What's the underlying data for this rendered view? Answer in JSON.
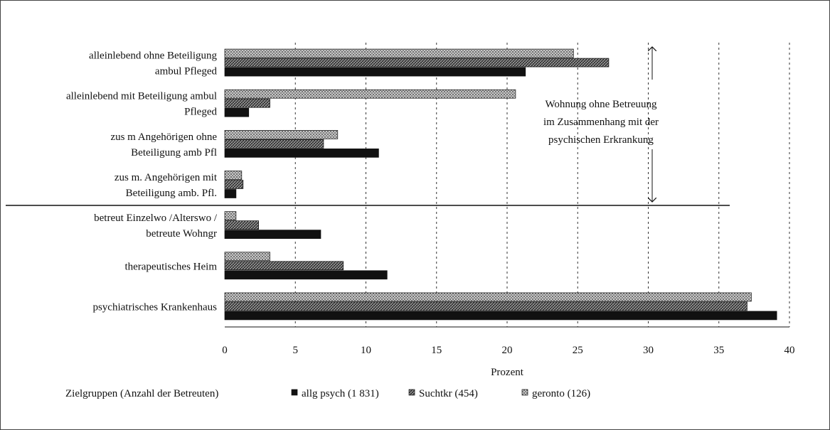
{
  "chart_data": {
    "type": "bar",
    "orientation": "horizontal",
    "categories": [
      [
        "alleinlebend ohne Beteiligung",
        "ambul  Pfleged"
      ],
      [
        "alleinlebend mit Beteiligung ambul",
        "Pfleged"
      ],
      [
        "zus  m  Angehörigen ohne",
        "Beteiligung amb  Pfl"
      ],
      [
        "zus  m. Angehörigen mit",
        "Beteiligung amb. Pfl."
      ],
      [
        "betreut Einzelwo /Alterswo /",
        "betreute Wohngr"
      ],
      [
        "therapeutisches Heim"
      ],
      [
        "psychiatrisches Krankenhaus"
      ]
    ],
    "series": [
      {
        "name": "geronto  (126)",
        "color": "#9a9a9a",
        "pattern": "dots",
        "values": [
          24.7,
          20.6,
          8.0,
          1.2,
          0.8,
          3.2,
          37.3
        ]
      },
      {
        "name": "Suchtkr  (454)",
        "color": "#6a6a6a",
        "pattern": "hatch",
        "values": [
          27.2,
          3.2,
          7.0,
          1.3,
          2.4,
          8.4,
          37.0
        ]
      },
      {
        "name": "allg psych  (1 831)",
        "color": "#111111",
        "pattern": "solid",
        "values": [
          21.3,
          1.7,
          10.9,
          0.8,
          6.8,
          11.5,
          39.1
        ]
      }
    ],
    "xlabel": "Prozent",
    "xlim": [
      0,
      40
    ],
    "xticks": [
      "0",
      "5",
      "10",
      "15",
      "20",
      "25",
      "30",
      "35",
      "40"
    ],
    "grid": "vertical dashed",
    "legend_title": "Zielgruppen (Anzahl der Betreuten)",
    "legend_placement": "bottom",
    "annotation": [
      "Wohnung ohne Betreuung",
      "im Zusammenhang mit der",
      "psychischen Erkrankung"
    ]
  }
}
